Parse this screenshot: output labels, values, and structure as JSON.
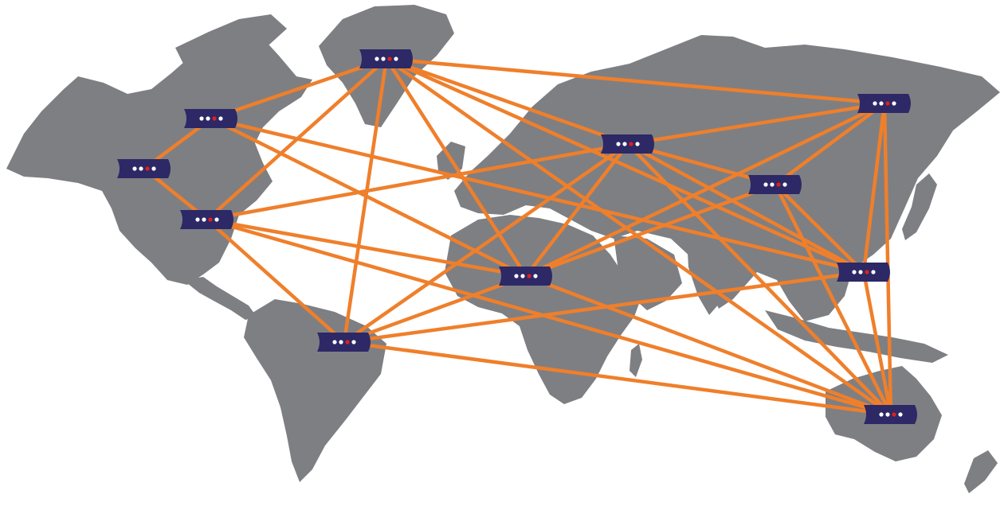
{
  "map": {
    "colors": {
      "land": "#7e7f83",
      "link": "#ef7f2b",
      "node": "#2d2866",
      "led_active": "#e0201b"
    },
    "node_icon": "router-icon",
    "nodes": [
      {
        "id": "scandinavia"
      },
      {
        "id": "canada-east"
      },
      {
        "id": "canada-west"
      },
      {
        "id": "usa-east"
      },
      {
        "id": "russia-west"
      },
      {
        "id": "russia-east"
      },
      {
        "id": "central-asia"
      },
      {
        "id": "east-asia"
      },
      {
        "id": "north-africa"
      },
      {
        "id": "brazil"
      },
      {
        "id": "australia"
      }
    ],
    "links": [
      [
        "scandinavia",
        "canada-east"
      ],
      [
        "scandinavia",
        "usa-east"
      ],
      [
        "scandinavia",
        "brazil"
      ],
      [
        "scandinavia",
        "north-africa"
      ],
      [
        "scandinavia",
        "russia-east"
      ],
      [
        "scandinavia",
        "east-asia"
      ],
      [
        "scandinavia",
        "australia"
      ],
      [
        "canada-east",
        "canada-west"
      ],
      [
        "canada-east",
        "north-africa"
      ],
      [
        "canada-east",
        "east-asia"
      ],
      [
        "canada-west",
        "usa-east"
      ],
      [
        "usa-east",
        "russia-west"
      ],
      [
        "usa-east",
        "north-africa"
      ],
      [
        "usa-east",
        "brazil"
      ],
      [
        "usa-east",
        "australia"
      ],
      [
        "russia-west",
        "scandinavia"
      ],
      [
        "russia-west",
        "russia-east"
      ],
      [
        "russia-west",
        "brazil"
      ],
      [
        "russia-west",
        "north-africa"
      ],
      [
        "russia-west",
        "east-asia"
      ],
      [
        "russia-west",
        "australia"
      ],
      [
        "russia-east",
        "central-asia"
      ],
      [
        "russia-east",
        "east-asia"
      ],
      [
        "russia-east",
        "australia"
      ],
      [
        "russia-east",
        "north-africa"
      ],
      [
        "central-asia",
        "north-africa"
      ],
      [
        "central-asia",
        "east-asia"
      ],
      [
        "central-asia",
        "australia"
      ],
      [
        "central-asia",
        "russia-west"
      ],
      [
        "east-asia",
        "brazil"
      ],
      [
        "east-asia",
        "australia"
      ],
      [
        "north-africa",
        "brazil"
      ],
      [
        "north-africa",
        "australia"
      ],
      [
        "brazil",
        "australia"
      ]
    ]
  }
}
